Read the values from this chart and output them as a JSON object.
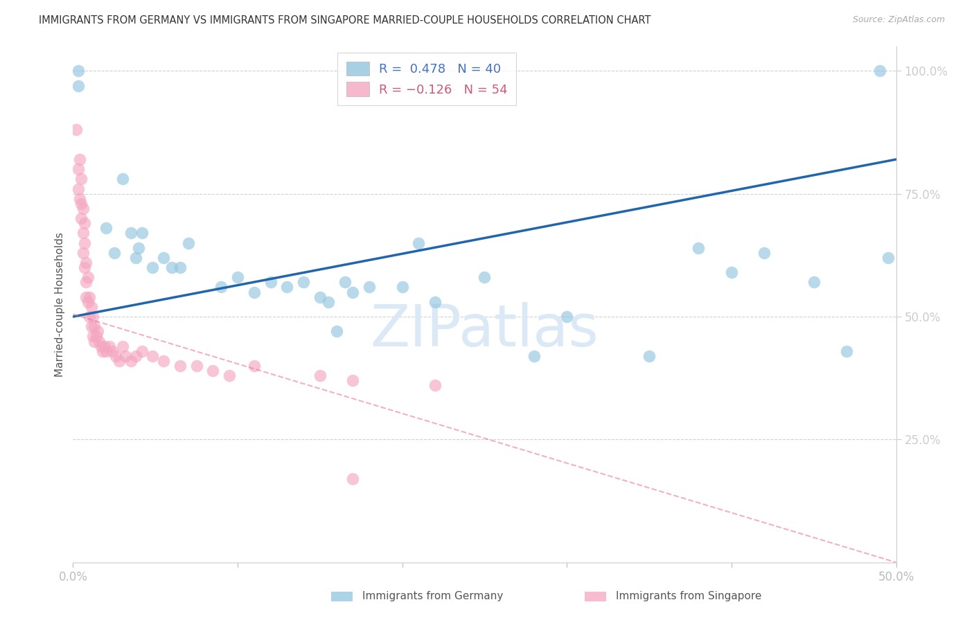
{
  "title": "IMMIGRANTS FROM GERMANY VS IMMIGRANTS FROM SINGAPORE MARRIED-COUPLE HOUSEHOLDS CORRELATION CHART",
  "source": "Source: ZipAtlas.com",
  "ylabel": "Married-couple Households",
  "xlim": [
    0,
    0.5
  ],
  "ylim": [
    0,
    1.05
  ],
  "legend_germany_r": "R =  0.478",
  "legend_germany_n": "N = 40",
  "legend_singapore_r": "R = -0.126",
  "legend_singapore_n": "N = 54",
  "color_germany": "#92c5de",
  "color_singapore": "#f4a6c0",
  "color_trendline_germany": "#2166ac",
  "color_trendline_singapore": "#e87090",
  "color_grid": "#d0d0d0",
  "color_right_axis": "#4472c4",
  "color_watermark": "#dbe8f5",
  "xlabel_bottom_germany": "Immigrants from Germany",
  "xlabel_bottom_singapore": "Immigrants from Singapore",
  "scatter_germany_x": [
    0.003,
    0.003,
    0.02,
    0.025,
    0.03,
    0.035,
    0.038,
    0.04,
    0.042,
    0.048,
    0.055,
    0.06,
    0.065,
    0.07,
    0.09,
    0.1,
    0.11,
    0.12,
    0.13,
    0.14,
    0.15,
    0.155,
    0.16,
    0.165,
    0.17,
    0.18,
    0.2,
    0.21,
    0.22,
    0.25,
    0.28,
    0.3,
    0.35,
    0.38,
    0.4,
    0.42,
    0.45,
    0.47,
    0.49,
    0.495
  ],
  "scatter_germany_y": [
    0.97,
    1.0,
    0.68,
    0.63,
    0.78,
    0.67,
    0.62,
    0.64,
    0.67,
    0.6,
    0.62,
    0.6,
    0.6,
    0.65,
    0.56,
    0.58,
    0.55,
    0.57,
    0.56,
    0.57,
    0.54,
    0.53,
    0.47,
    0.57,
    0.55,
    0.56,
    0.56,
    0.65,
    0.53,
    0.58,
    0.42,
    0.5,
    0.42,
    0.64,
    0.59,
    0.63,
    0.57,
    0.43,
    1.0,
    0.62
  ],
  "scatter_singapore_x": [
    0.002,
    0.003,
    0.003,
    0.004,
    0.004,
    0.005,
    0.005,
    0.005,
    0.006,
    0.006,
    0.006,
    0.007,
    0.007,
    0.007,
    0.008,
    0.008,
    0.008,
    0.009,
    0.009,
    0.01,
    0.01,
    0.011,
    0.011,
    0.012,
    0.012,
    0.013,
    0.013,
    0.014,
    0.015,
    0.016,
    0.017,
    0.018,
    0.019,
    0.02,
    0.022,
    0.024,
    0.026,
    0.028,
    0.03,
    0.032,
    0.035,
    0.038,
    0.042,
    0.048,
    0.055,
    0.065,
    0.075,
    0.085,
    0.095,
    0.11,
    0.15,
    0.17,
    0.22,
    0.17
  ],
  "scatter_singapore_y": [
    0.88,
    0.8,
    0.76,
    0.82,
    0.74,
    0.78,
    0.73,
    0.7,
    0.72,
    0.67,
    0.63,
    0.69,
    0.65,
    0.6,
    0.61,
    0.57,
    0.54,
    0.58,
    0.53,
    0.54,
    0.5,
    0.52,
    0.48,
    0.5,
    0.46,
    0.48,
    0.45,
    0.46,
    0.47,
    0.45,
    0.44,
    0.43,
    0.44,
    0.43,
    0.44,
    0.43,
    0.42,
    0.41,
    0.44,
    0.42,
    0.41,
    0.42,
    0.43,
    0.42,
    0.41,
    0.4,
    0.4,
    0.39,
    0.38,
    0.4,
    0.38,
    0.37,
    0.36,
    0.17
  ],
  "trendline_germany_x0": 0.0,
  "trendline_germany_y0": 0.5,
  "trendline_germany_x1": 0.5,
  "trendline_germany_y1": 0.82,
  "trendline_singapore_x0": 0.0,
  "trendline_singapore_y0": 0.505,
  "trendline_singapore_x1": 0.5,
  "trendline_singapore_y1": 0.0
}
